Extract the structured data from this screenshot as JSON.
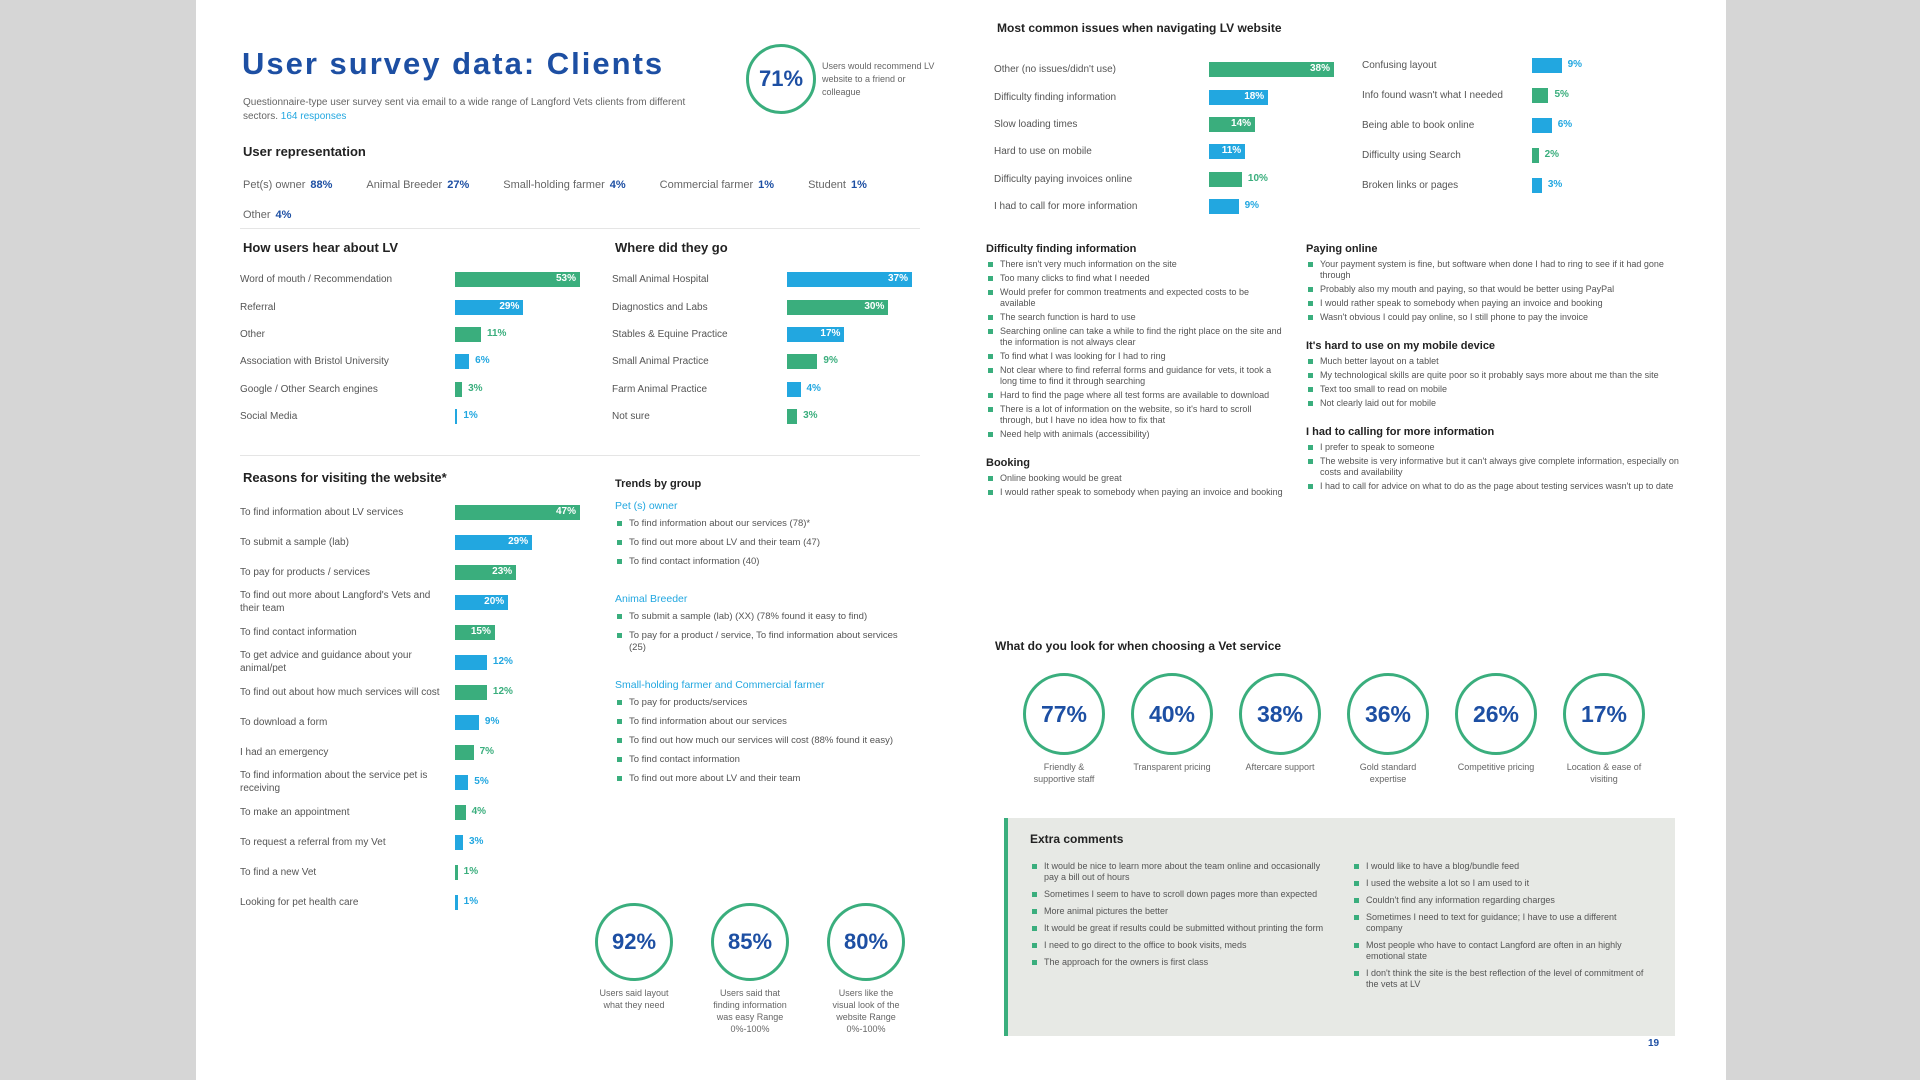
{
  "header": {
    "title": "User survey data: Clients",
    "subtitle": "Questionnaire-type user survey sent via email to a wide range of Langford Vets clients from different sectors.",
    "subtitle_link": "164 responses"
  },
  "recommend": {
    "value_label": "71%",
    "caption": "Users would recommend LV website to a friend or colleague"
  },
  "user_representation": {
    "title": "User representation",
    "items": [
      {
        "label": "Pet(s) owner",
        "value": "88%"
      },
      {
        "label": "Animal Breeder",
        "value": "27%"
      },
      {
        "label": "Small-holding farmer",
        "value": "4%"
      },
      {
        "label": "Commercial farmer",
        "value": "1%"
      },
      {
        "label": "Student",
        "value": "1%"
      },
      {
        "label": "Other",
        "value": "4%"
      }
    ]
  },
  "hear_about": {
    "title": "How users hear about LV",
    "bars": [
      {
        "label": "Word of mouth / Recommendation",
        "value": 53,
        "value_label": "53%",
        "color": "#3aae7d"
      },
      {
        "label": "Referral",
        "value": 29,
        "value_label": "29%",
        "color": "#22a7e0"
      },
      {
        "label": "Other",
        "value": 11,
        "value_label": "11%",
        "color": "#3aae7d"
      },
      {
        "label": "Association with Bristol University",
        "value": 6,
        "value_label": "6%",
        "color": "#22a7e0"
      },
      {
        "label": "Google / Other Search engines",
        "value": 3,
        "value_label": "3%",
        "color": "#3aae7d"
      },
      {
        "label": "Social Media",
        "value": 1,
        "value_label": "1%",
        "color": "#22a7e0"
      }
    ]
  },
  "where_go": {
    "title": "Where did they go",
    "bars": [
      {
        "label": "Small Animal Hospital",
        "value": 37,
        "value_label": "37%",
        "color": "#22a7e0"
      },
      {
        "label": "Diagnostics and Labs",
        "value": 30,
        "value_label": "30%",
        "color": "#3aae7d"
      },
      {
        "label": "Stables & Equine Practice",
        "value": 17,
        "value_label": "17%",
        "color": "#22a7e0"
      },
      {
        "label": "Small Animal Practice",
        "value": 9,
        "value_label": "9%",
        "color": "#3aae7d"
      },
      {
        "label": "Farm Animal Practice",
        "value": 4,
        "value_label": "4%",
        "color": "#22a7e0"
      },
      {
        "label": "Not sure",
        "value": 3,
        "value_label": "3%",
        "color": "#3aae7d"
      }
    ]
  },
  "reasons": {
    "title": "Reasons for visiting the website*",
    "bars": [
      {
        "label": "To find information about LV services",
        "value": 47,
        "value_label": "47%",
        "color": "#3aae7d"
      },
      {
        "label": "To submit a sample (lab)",
        "value": 29,
        "value_label": "29%",
        "color": "#22a7e0"
      },
      {
        "label": "To pay for products / services",
        "value": 23,
        "value_label": "23%",
        "color": "#3aae7d"
      },
      {
        "label": "To find out more about Langford's Vets and their team",
        "value": 20,
        "value_label": "20%",
        "color": "#22a7e0"
      },
      {
        "label": "To find contact information",
        "value": 15,
        "value_label": "15%",
        "color": "#3aae7d"
      },
      {
        "label": "To get advice and guidance about your animal/pet",
        "value": 12,
        "value_label": "12%",
        "color": "#22a7e0"
      },
      {
        "label": "To find out about how much services will cost",
        "value": 12,
        "value_label": "12%",
        "color": "#3aae7d"
      },
      {
        "label": "To download a form",
        "value": 9,
        "value_label": "9%",
        "color": "#22a7e0"
      },
      {
        "label": "I had an emergency",
        "value": 7,
        "value_label": "7%",
        "color": "#3aae7d"
      },
      {
        "label": "To find information about the service pet is receiving",
        "value": 5,
        "value_label": "5%",
        "color": "#22a7e0"
      },
      {
        "label": "To make an appointment",
        "value": 4,
        "value_label": "4%",
        "color": "#3aae7d"
      },
      {
        "label": "To request a referral from my Vet",
        "value": 3,
        "value_label": "3%",
        "color": "#22a7e0"
      },
      {
        "label": "To find a new Vet",
        "value": 1,
        "value_label": "1%",
        "color": "#3aae7d"
      },
      {
        "label": "Looking for pet health care",
        "value": 1,
        "value_label": "1%",
        "color": "#22a7e0"
      }
    ]
  },
  "trends": {
    "title": "Trends by group",
    "groups": [
      {
        "heading": "Pet (s) owner",
        "items": [
          "To find information about our services (78)*",
          "To find out more about LV and their team (47)",
          "To find contact information (40)"
        ]
      },
      {
        "heading": "Animal Breeder",
        "items": [
          "To submit a sample (lab) (XX) (78% found it easy to find)",
          "To pay for a product / service, To find information about services (25)"
        ]
      },
      {
        "heading": "Small-holding farmer and Commercial farmer",
        "items": [
          "To pay for products/services",
          "To find information about our services",
          "To find out how much our services will cost (88% found it easy)",
          "To find contact information",
          "To find out more about LV and their team"
        ]
      }
    ]
  },
  "stats": [
    {
      "value_label": "92%",
      "caption": "Users said layout what they need"
    },
    {
      "value_label": "85%",
      "caption": "Users said that finding information was easy Range 0%-100%"
    },
    {
      "value_label": "80%",
      "caption": "Users like the visual look of the website Range 0%-100%"
    }
  ],
  "issues": {
    "title": "Most common issues when navigating LV website",
    "left": [
      {
        "label": "Other (no issues/didn't use)",
        "value": 38,
        "value_label": "38%",
        "color": "#3aae7d"
      },
      {
        "label": "Difficulty finding information",
        "value": 18,
        "value_label": "18%",
        "color": "#22a7e0"
      },
      {
        "label": "Slow loading times",
        "value": 14,
        "value_label": "14%",
        "color": "#3aae7d"
      },
      {
        "label": "Hard to use on mobile",
        "value": 11,
        "value_label": "11%",
        "color": "#22a7e0"
      },
      {
        "label": "Difficulty paying invoices online",
        "value": 10,
        "value_label": "10%",
        "color": "#3aae7d"
      },
      {
        "label": "I had to call for more information",
        "value": 9,
        "value_label": "9%",
        "color": "#22a7e0"
      }
    ],
    "right": [
      {
        "label": "Confusing layout",
        "value": 9,
        "value_label": "9%",
        "color": "#22a7e0"
      },
      {
        "label": "Info found wasn't what I needed",
        "value": 5,
        "value_label": "5%",
        "color": "#3aae7d"
      },
      {
        "label": "Being able to book online",
        "value": 6,
        "value_label": "6%",
        "color": "#22a7e0"
      },
      {
        "label": "Difficulty using Search",
        "value": 2,
        "value_label": "2%",
        "color": "#3aae7d"
      },
      {
        "label": "Broken links or pages",
        "value": 3,
        "value_label": "3%",
        "color": "#22a7e0"
      }
    ]
  },
  "comments_left": [
    {
      "title": "Difficulty finding information",
      "items": [
        "There isn't very much information on the site",
        "Too many clicks to find what I needed",
        "Would prefer for common treatments and expected costs to be available",
        "The search function is hard to use",
        "Searching online can take a while to find the right place on the site and the information is not always clear",
        "To find what I was looking for I had to ring",
        "Not clear where to find referral forms and guidance for vets, it took a long time to find it through searching",
        "Hard to find the page where all test forms are available to download",
        "There is a lot of information on the website, so it's hard to scroll through, but I have no idea how to fix that",
        "Need help with animals (accessibility)"
      ]
    },
    {
      "title": "Booking",
      "items": [
        "Online booking would be great",
        "I would rather speak to somebody when paying an invoice and booking"
      ]
    }
  ],
  "comments_right": [
    {
      "title": "Paying online",
      "items": [
        "Your payment system is fine, but software when done I had to ring to see if it had gone through",
        "Probably also my mouth and paying, so that would be better using PayPal",
        "I would rather speak to somebody when paying an invoice and booking",
        "Wasn't obvious I could pay online, so I still phone to pay the invoice"
      ]
    },
    {
      "title": "It's hard to use on my mobile device",
      "items": [
        "Much better layout on a tablet",
        "My technological skills are quite poor so it probably says more about me than the site",
        "Text too small to read on mobile",
        "Not clearly laid out for mobile"
      ]
    },
    {
      "title": "I had to calling for more information",
      "items": [
        "I prefer to speak to someone",
        "The website is very informative but it can't always give complete information, especially on costs and availability",
        "I had to call for advice on what to do as the page about testing services wasn't up to date"
      ]
    }
  ],
  "choosing": {
    "title": "What do you look for when choosing a Vet service",
    "items": [
      {
        "value_label": "77%",
        "caption": "Friendly & supportive staff"
      },
      {
        "value_label": "40%",
        "caption": "Transparent pricing"
      },
      {
        "value_label": "38%",
        "caption": "Aftercare support"
      },
      {
        "value_label": "36%",
        "caption": "Gold standard expertise"
      },
      {
        "value_label": "26%",
        "caption": "Competitive pricing"
      },
      {
        "value_label": "17%",
        "caption": "Location & ease of visiting"
      }
    ]
  },
  "extra": {
    "title": "Extra comments",
    "left": [
      "It would be nice to learn more about the team online and occasionally pay a bill out of hours",
      "Sometimes I seem to have to scroll down pages more than expected",
      "More animal pictures the better",
      "It would be great if results could be submitted without printing the form",
      "I need to go direct to the office to book visits, meds",
      "The approach for the owners is first class"
    ],
    "right": [
      "I would like to have a blog/bundle feed",
      "I used the website a lot so I am used to it",
      "Couldn't find any information regarding charges",
      "Sometimes I need to text for guidance; I have to use a different company",
      "Most people who have to contact Langford are often in an highly emotional state",
      "I don't think the site is the best reflection of the level of commitment of the vets at LV"
    ]
  },
  "page_number": "19"
}
